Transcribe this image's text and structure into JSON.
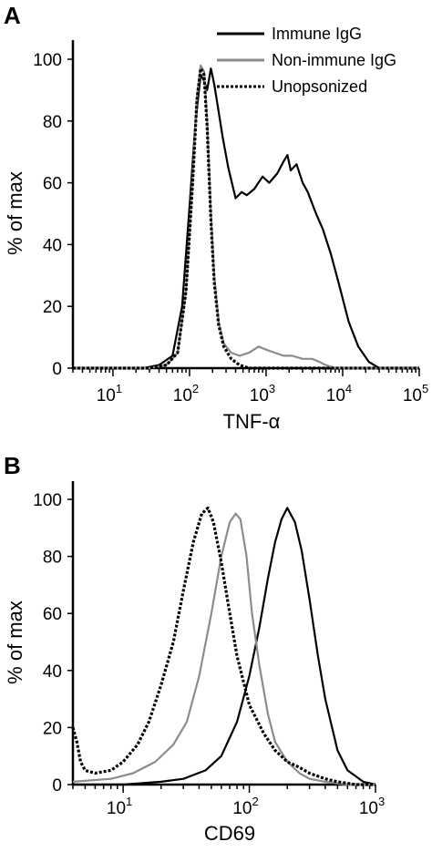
{
  "chart_data": [
    {
      "panel": "A",
      "type": "line",
      "xlabel": "TNF-α",
      "ylabel": "% of max",
      "xscale": "log",
      "xlim": [
        3,
        100000
      ],
      "ylim": [
        0,
        100
      ],
      "yticks": [
        "0",
        "20",
        "40",
        "60",
        "80",
        "100"
      ],
      "xticks": [
        {
          "base": "10",
          "exp": "1",
          "value": 10
        },
        {
          "base": "10",
          "exp": "2",
          "value": 100
        },
        {
          "base": "10",
          "exp": "3",
          "value": 1000
        },
        {
          "base": "10",
          "exp": "4",
          "value": 10000
        },
        {
          "base": "10",
          "exp": "5",
          "value": 100000
        }
      ],
      "legend_position": "top-right",
      "series": [
        {
          "name": "Immune IgG",
          "color": "#000000",
          "style": "solid",
          "x": [
            3,
            10,
            25,
            40,
            60,
            80,
            100,
            120,
            140,
            155,
            170,
            190,
            210,
            240,
            270,
            320,
            400,
            480,
            560,
            700,
            900,
            1100,
            1400,
            1700,
            1900,
            2100,
            2500,
            3000,
            3500,
            4500,
            5500,
            7000,
            9000,
            12000,
            16000,
            22000,
            30000,
            40000,
            100000
          ],
          "y": [
            0,
            0,
            0,
            1,
            4,
            20,
            52,
            80,
            95,
            93,
            90,
            97,
            92,
            83,
            75,
            65,
            55,
            57,
            56,
            58,
            62,
            60,
            63,
            67,
            69,
            64,
            66,
            60,
            57,
            50,
            45,
            37,
            27,
            15,
            7,
            2,
            0,
            0,
            0
          ]
        },
        {
          "name": "Non-immune IgG",
          "color": "#8c8c8c",
          "style": "solid",
          "x": [
            3,
            10,
            30,
            50,
            70,
            90,
            110,
            125,
            140,
            155,
            170,
            190,
            210,
            240,
            280,
            350,
            450,
            600,
            800,
            1000,
            1300,
            1700,
            2200,
            3000,
            4000,
            5000,
            6000,
            8000,
            100000
          ],
          "y": [
            0,
            0,
            0,
            1,
            5,
            25,
            62,
            88,
            98,
            96,
            80,
            50,
            30,
            15,
            8,
            5,
            4,
            5,
            7,
            6,
            5,
            4,
            4,
            3,
            3,
            2,
            1,
            0,
            0
          ],
          "note": ""
        },
        {
          "name": "Unopsonized",
          "color": "#000000",
          "style": "dashed",
          "x": [
            3,
            10,
            30,
            50,
            70,
            90,
            110,
            125,
            140,
            155,
            170,
            190,
            210,
            240,
            280,
            350,
            450,
            600,
            800,
            100000
          ],
          "y": [
            0,
            0,
            0,
            1,
            5,
            25,
            60,
            87,
            97,
            95,
            78,
            48,
            28,
            14,
            7,
            3,
            1,
            0,
            0,
            0
          ]
        }
      ]
    },
    {
      "panel": "B",
      "type": "line",
      "xlabel": "CD69",
      "ylabel": "% of max",
      "xscale": "log",
      "xlim": [
        4,
        1000
      ],
      "ylim": [
        0,
        100
      ],
      "yticks": [
        "0",
        "20",
        "40",
        "60",
        "80",
        "100"
      ],
      "xticks": [
        {
          "base": "10",
          "exp": "1",
          "value": 10
        },
        {
          "base": "10",
          "exp": "2",
          "value": 100
        },
        {
          "base": "10",
          "exp": "3",
          "value": 1000
        }
      ],
      "series": [
        {
          "name": "Immune IgG",
          "color": "#000000",
          "style": "solid",
          "x": [
            4,
            10,
            20,
            30,
            45,
            60,
            80,
            100,
            120,
            140,
            160,
            180,
            200,
            230,
            260,
            300,
            350,
            400,
            500,
            600,
            800,
            1000
          ],
          "y": [
            0,
            0,
            1,
            2,
            5,
            10,
            22,
            38,
            55,
            72,
            85,
            93,
            97,
            92,
            82,
            65,
            45,
            30,
            12,
            5,
            1,
            0
          ]
        },
        {
          "name": "Non-immune IgG",
          "color": "#8c8c8c",
          "style": "solid",
          "x": [
            4,
            8,
            12,
            18,
            25,
            32,
            40,
            50,
            60,
            70,
            78,
            85,
            95,
            105,
            120,
            140,
            160,
            200,
            250,
            300,
            400,
            600,
            1000
          ],
          "y": [
            1,
            2,
            4,
            8,
            14,
            22,
            38,
            60,
            80,
            92,
            95,
            93,
            80,
            60,
            42,
            25,
            15,
            8,
            4,
            2,
            1,
            0,
            0
          ]
        },
        {
          "name": "Unopsonized",
          "color": "#000000",
          "style": "dashed",
          "x": [
            4,
            4.3,
            4.6,
            5,
            6,
            8,
            10,
            13,
            16,
            20,
            25,
            30,
            36,
            42,
            47,
            52,
            60,
            70,
            80,
            100,
            130,
            160,
            200,
            250,
            300,
            400,
            500,
            700,
            1000
          ],
          "y": [
            20,
            15,
            8,
            5,
            4,
            5,
            8,
            14,
            22,
            35,
            50,
            68,
            85,
            95,
            97,
            92,
            78,
            60,
            45,
            28,
            18,
            12,
            8,
            6,
            4,
            2,
            1,
            0,
            0
          ]
        }
      ]
    }
  ]
}
